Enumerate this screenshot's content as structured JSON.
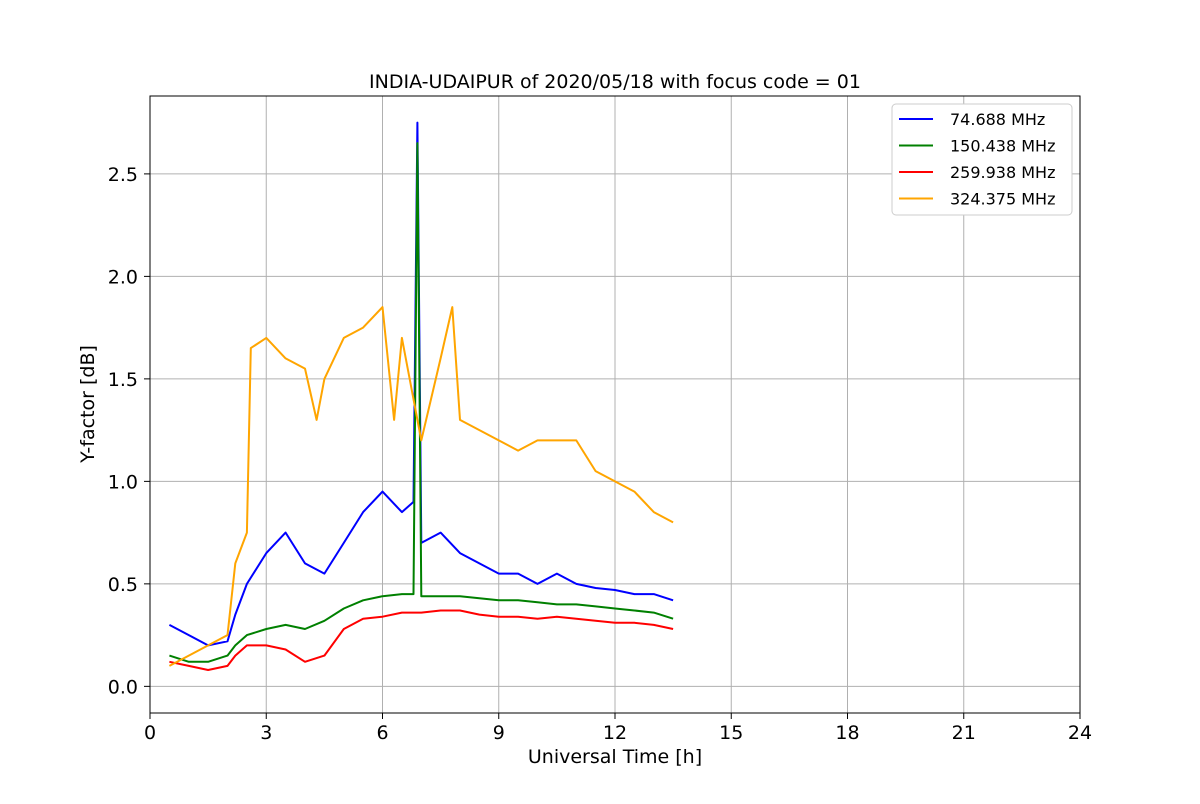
{
  "chart_data": {
    "type": "line",
    "title": "INDIA-UDAIPUR of 2020/05/18 with focus code = 01",
    "xlabel": "Universal Time [h]",
    "ylabel": "Y-factor [dB]",
    "xlim": [
      0,
      24
    ],
    "ylim": [
      -0.13,
      2.88
    ],
    "xticks": [
      0,
      3,
      6,
      9,
      12,
      15,
      18,
      21,
      24
    ],
    "xtick_labels": [
      "0",
      "3",
      "6",
      "9",
      "12",
      "15",
      "18",
      "21",
      "24"
    ],
    "yticks": [
      0.0,
      0.5,
      1.0,
      1.5,
      2.0,
      2.5
    ],
    "ytick_labels": [
      "0.0",
      "0.5",
      "1.0",
      "1.5",
      "2.0",
      "2.5"
    ],
    "grid": true,
    "legend_position": "top-right",
    "series": [
      {
        "name": " 74.688 MHz",
        "color": "#0000ff",
        "x": [
          0.5,
          1.0,
          1.5,
          2.0,
          2.2,
          2.5,
          3.0,
          3.5,
          4.0,
          4.5,
          5.0,
          5.5,
          6.0,
          6.5,
          6.8,
          6.9,
          7.0,
          7.5,
          8.0,
          8.5,
          9.0,
          9.5,
          10.0,
          10.5,
          11.0,
          11.5,
          12.0,
          12.5,
          13.0,
          13.5
        ],
        "y": [
          0.3,
          0.25,
          0.2,
          0.22,
          0.35,
          0.5,
          0.65,
          0.75,
          0.6,
          0.55,
          0.7,
          0.85,
          0.95,
          0.85,
          0.9,
          2.75,
          0.7,
          0.75,
          0.65,
          0.6,
          0.55,
          0.55,
          0.5,
          0.55,
          0.5,
          0.48,
          0.47,
          0.45,
          0.45,
          0.42
        ]
      },
      {
        "name": "150.438 MHz",
        "color": "#008000",
        "x": [
          0.5,
          1.0,
          1.5,
          2.0,
          2.2,
          2.5,
          3.0,
          3.5,
          4.0,
          4.5,
          5.0,
          5.5,
          6.0,
          6.5,
          6.8,
          6.9,
          7.0,
          7.5,
          8.0,
          8.5,
          9.0,
          9.5,
          10.0,
          10.5,
          11.0,
          11.5,
          12.0,
          12.5,
          13.0,
          13.5
        ],
        "y": [
          0.15,
          0.12,
          0.12,
          0.15,
          0.2,
          0.25,
          0.28,
          0.3,
          0.28,
          0.32,
          0.38,
          0.42,
          0.44,
          0.45,
          0.45,
          2.65,
          0.44,
          0.44,
          0.44,
          0.43,
          0.42,
          0.42,
          0.41,
          0.4,
          0.4,
          0.39,
          0.38,
          0.37,
          0.36,
          0.33
        ]
      },
      {
        "name": "259.938 MHz",
        "color": "#ff0000",
        "x": [
          0.5,
          1.0,
          1.5,
          2.0,
          2.2,
          2.5,
          3.0,
          3.5,
          4.0,
          4.5,
          5.0,
          5.5,
          6.0,
          6.5,
          7.0,
          7.5,
          8.0,
          8.5,
          9.0,
          9.5,
          10.0,
          10.5,
          11.0,
          11.5,
          12.0,
          12.5,
          13.0,
          13.5
        ],
        "y": [
          0.12,
          0.1,
          0.08,
          0.1,
          0.15,
          0.2,
          0.2,
          0.18,
          0.12,
          0.15,
          0.28,
          0.33,
          0.34,
          0.36,
          0.36,
          0.37,
          0.37,
          0.35,
          0.34,
          0.34,
          0.33,
          0.34,
          0.33,
          0.32,
          0.31,
          0.31,
          0.3,
          0.28
        ]
      },
      {
        "name": "324.375 MHz",
        "color": "#ffa500",
        "x": [
          0.5,
          1.0,
          1.5,
          2.0,
          2.2,
          2.5,
          2.6,
          3.0,
          3.5,
          4.0,
          4.3,
          4.5,
          5.0,
          5.5,
          6.0,
          6.3,
          6.5,
          7.0,
          7.5,
          7.8,
          8.0,
          8.5,
          9.0,
          9.5,
          10.0,
          10.5,
          11.0,
          11.5,
          12.0,
          12.5,
          13.0,
          13.5
        ],
        "y": [
          0.1,
          0.15,
          0.2,
          0.25,
          0.6,
          0.75,
          1.65,
          1.7,
          1.6,
          1.55,
          1.3,
          1.5,
          1.7,
          1.75,
          1.85,
          1.3,
          1.7,
          1.2,
          1.6,
          1.85,
          1.3,
          1.25,
          1.2,
          1.15,
          1.2,
          1.2,
          1.2,
          1.05,
          1.0,
          0.95,
          0.85,
          0.8
        ]
      }
    ]
  }
}
